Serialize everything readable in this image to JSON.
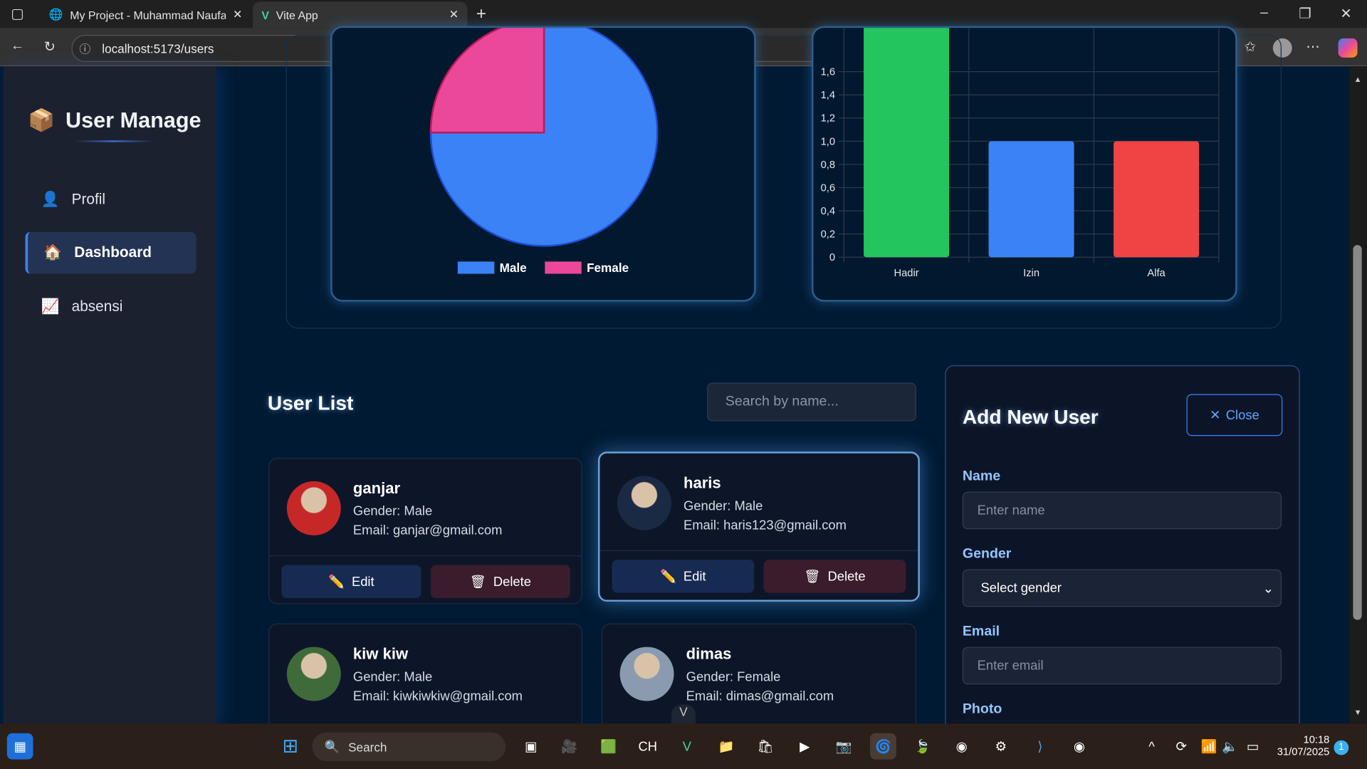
{
  "browser": {
    "tabs": [
      {
        "label": "My Project - Muhammad Naufal H"
      },
      {
        "label": "Vite App"
      }
    ],
    "url": "localhost:5173/users"
  },
  "sidebar": {
    "brand": "User Manage",
    "items": [
      {
        "label": "Profil",
        "icon": "person-icon"
      },
      {
        "label": "Dashboard",
        "icon": "house-icon",
        "active": true
      },
      {
        "label": "absensi",
        "icon": "chart-increasing-icon"
      }
    ]
  },
  "chart_data": [
    {
      "type": "pie",
      "categories": [
        "Male",
        "Female"
      ],
      "values": [
        3,
        1
      ],
      "colors": [
        "#3b82f6",
        "#ec4899"
      ],
      "legend": "bottom"
    },
    {
      "type": "bar",
      "categories": [
        "Hadir",
        "Izin",
        "Alfa"
      ],
      "values": [
        2,
        1,
        1
      ],
      "colors": [
        "#22c55e",
        "#3b82f6",
        "#ef4444"
      ],
      "yticks": [
        "0",
        "0,2",
        "0,4",
        "0,6",
        "0,8",
        "1,0",
        "1,2",
        "1,4",
        "1,6"
      ],
      "grid": true
    }
  ],
  "userList": {
    "title": "User List",
    "searchPlaceholder": "Search by name...",
    "edit": "Edit",
    "delete": "Delete",
    "users": [
      {
        "name": "ganjar",
        "gender": "Gender: Male",
        "email": "Email: ganjar@gmail.com"
      },
      {
        "name": "haris",
        "gender": "Gender: Male",
        "email": "Email: haris123@gmail.com"
      },
      {
        "name": "kiw kiw",
        "gender": "Gender: Male",
        "email": "Email: kiwkiwkiw@gmail.com"
      },
      {
        "name": "dimas",
        "gender": "Gender: Female",
        "email": "Email: dimas@gmail.com"
      }
    ]
  },
  "form": {
    "title": "Add New User",
    "close": "Close",
    "nameLabel": "Name",
    "namePlaceholder": "Enter name",
    "genderLabel": "Gender",
    "genderValue": "Select gender",
    "emailLabel": "Email",
    "emailPlaceholder": "Enter email",
    "photoLabel": "Photo"
  },
  "taskbar": {
    "search": "Search",
    "time": "10:18",
    "date": "31/07/2025",
    "notifications": "1"
  }
}
